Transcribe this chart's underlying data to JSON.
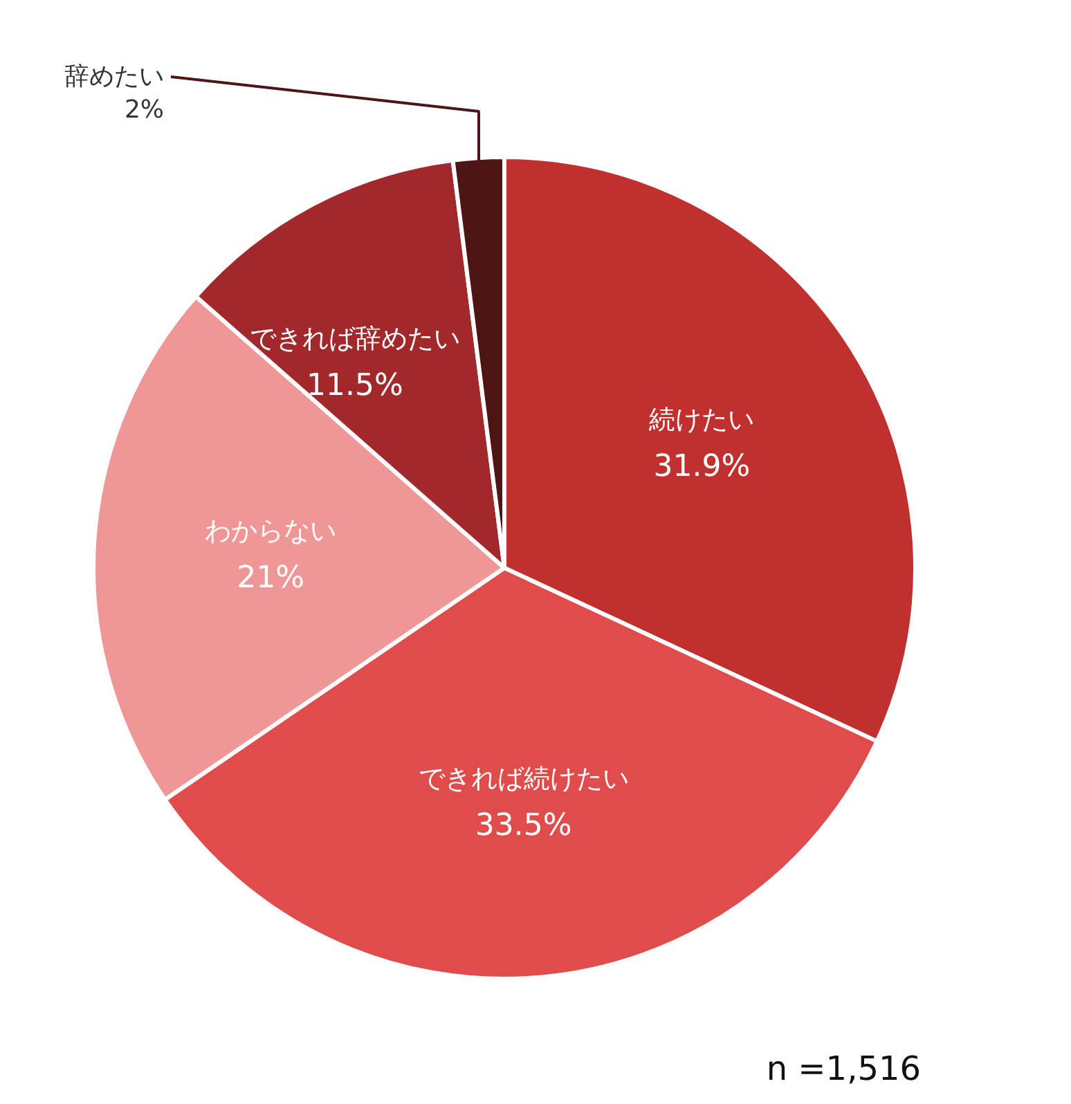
{
  "chart_data": {
    "type": "pie",
    "categories": [
      "続けたい",
      "できれば続けたい",
      "わからない",
      "できれば辞めたい",
      "辞めたい"
    ],
    "values": [
      31.9,
      33.5,
      21,
      11.5,
      2
    ],
    "colors": [
      "#c0302e",
      "#e04b4c",
      "#ef9796",
      "#a1292c",
      "#4d1516"
    ],
    "data_labels": true,
    "value_labels": [
      "31.9%",
      "33.5%",
      "21%",
      "11.5%",
      "2%"
    ],
    "annotations": [
      "n =1,516"
    ]
  }
}
